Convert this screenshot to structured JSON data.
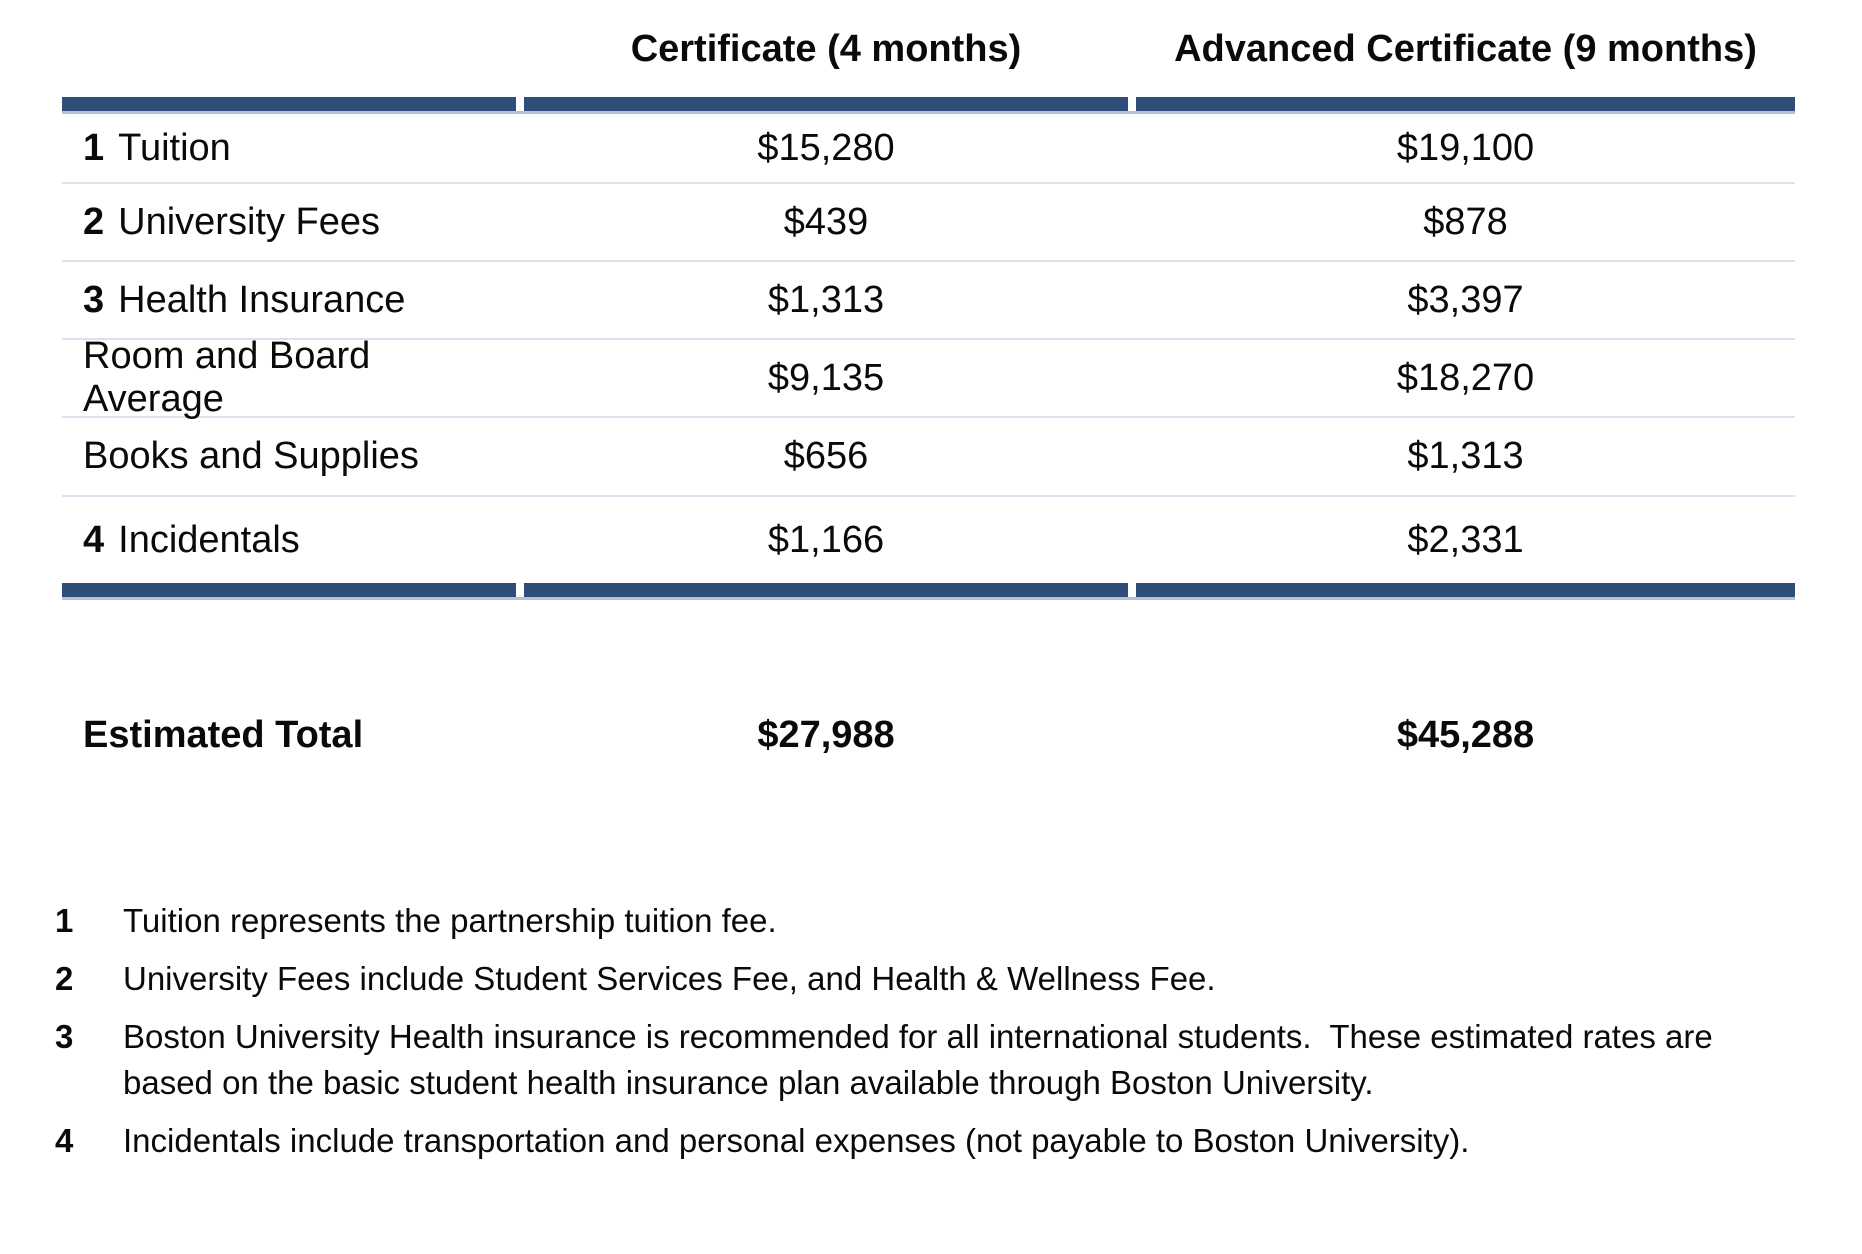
{
  "table": {
    "columns": [
      "",
      "Certificate (4 months)",
      "Advanced Certificate (9 months)"
    ],
    "rows": [
      {
        "num": "1",
        "label": "Tuition",
        "cert": "$15,280",
        "adv": "$19,100"
      },
      {
        "num": "2",
        "label": "University Fees",
        "cert": "$439",
        "adv": "$878"
      },
      {
        "num": "3",
        "label": "Health Insurance",
        "cert": "$1,313",
        "adv": "$3,397"
      },
      {
        "num": "",
        "label": "Room and Board Average",
        "cert": "$9,135",
        "adv": "$18,270"
      },
      {
        "num": "",
        "label": "Books and Supplies",
        "cert": "$656",
        "adv": "$1,313"
      },
      {
        "num": "4",
        "label": "Incidentals",
        "cert": "$1,166",
        "adv": "$2,331"
      }
    ],
    "total": {
      "label": "Estimated Total",
      "cert": "$27,988",
      "adv": "$45,288"
    }
  },
  "footnotes": [
    {
      "num": "1",
      "text": "Tuition represents the partnership tuition fee."
    },
    {
      "num": "2",
      "text": "University Fees include Student Services Fee, and Health & Wellness Fee."
    },
    {
      "num": "3",
      "text": "Boston University Health insurance is recommended for all international students.  These estimated rates are",
      "text2": "based on the basic student health insurance plan available through Boston University."
    },
    {
      "num": "4",
      "text": "Incidentals include transportation and personal expenses (not payable to Boston University)."
    }
  ],
  "colors": {
    "accent_bar": "#2E4E79",
    "accent_bar_edge": "#B3C1D6",
    "row_divider": "#D9E2EF",
    "text": "#0a0a0a",
    "background": "#ffffff"
  }
}
